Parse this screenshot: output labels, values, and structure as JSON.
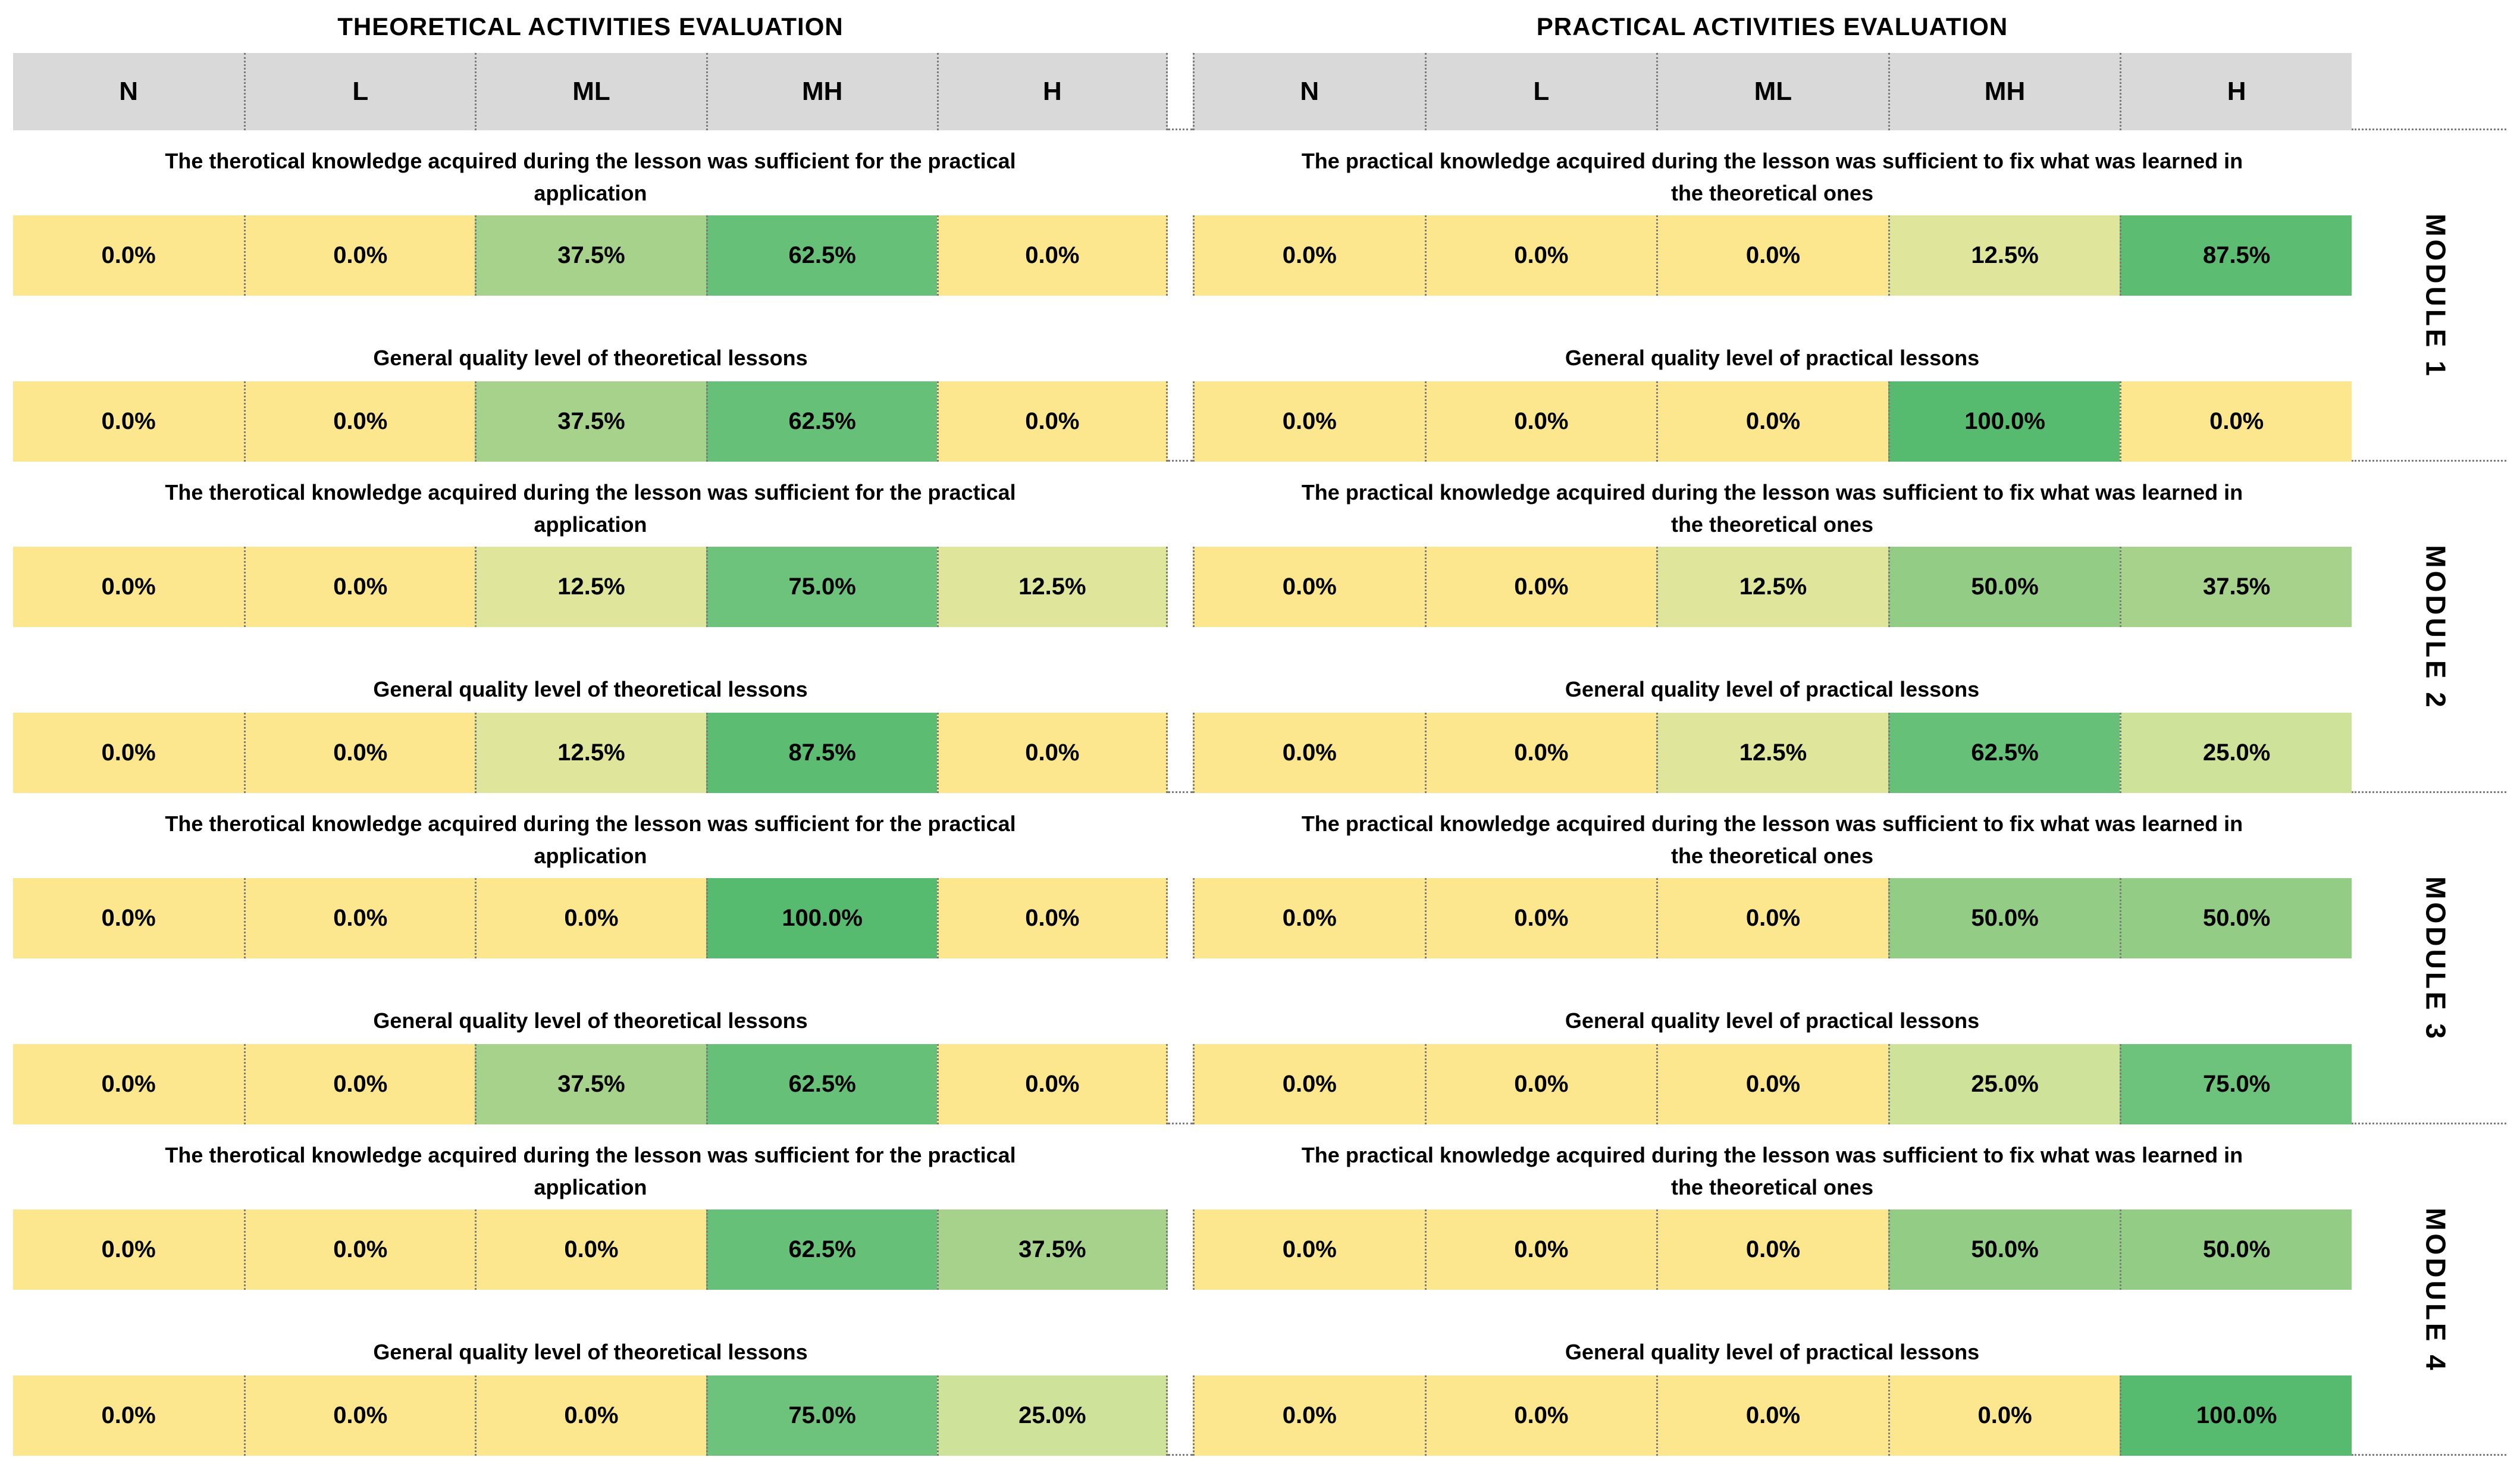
{
  "left_table": {
    "title": "THEORETICAL ACTIVITIES EVALUATION",
    "columns": [
      "N",
      "L",
      "ML",
      "MH",
      "H"
    ],
    "modules": [
      {
        "rows": [
          {
            "question": "The therotical knowledge acquired during the lesson was sufficient for the practical application",
            "values": [
              "0.0%",
              "0.0%",
              "37.5%",
              "62.5%",
              "0.0%"
            ]
          },
          {
            "question": "General quality level of theoretical lessons",
            "values": [
              "0.0%",
              "0.0%",
              "37.5%",
              "62.5%",
              "0.0%"
            ]
          }
        ]
      },
      {
        "rows": [
          {
            "question": "The therotical knowledge acquired during the lesson was sufficient for the practical application",
            "values": [
              "0.0%",
              "0.0%",
              "12.5%",
              "75.0%",
              "12.5%"
            ]
          },
          {
            "question": "General quality level of theoretical lessons",
            "values": [
              "0.0%",
              "0.0%",
              "12.5%",
              "87.5%",
              "0.0%"
            ]
          }
        ]
      },
      {
        "rows": [
          {
            "question": "The therotical knowledge acquired during the lesson was sufficient for the practical application",
            "values": [
              "0.0%",
              "0.0%",
              "0.0%",
              "100.0%",
              "0.0%"
            ]
          },
          {
            "question": "General quality level of theoretical lessons",
            "values": [
              "0.0%",
              "0.0%",
              "37.5%",
              "62.5%",
              "0.0%"
            ]
          }
        ]
      },
      {
        "rows": [
          {
            "question": "The therotical knowledge acquired during the lesson was sufficient for the practical application",
            "values": [
              "0.0%",
              "0.0%",
              "0.0%",
              "62.5%",
              "37.5%"
            ]
          },
          {
            "question": "General quality level of theoretical lessons",
            "values": [
              "0.0%",
              "0.0%",
              "0.0%",
              "75.0%",
              "25.0%"
            ]
          }
        ]
      }
    ]
  },
  "right_table": {
    "title": "PRACTICAL ACTIVITIES EVALUATION",
    "columns": [
      "N",
      "L",
      "ML",
      "MH",
      "H"
    ],
    "modules": [
      {
        "rows": [
          {
            "question": "The practical knowledge acquired during the lesson was sufficient to fix what was learned in the theoretical ones",
            "values": [
              "0.0%",
              "0.0%",
              "0.0%",
              "12.5%",
              "87.5%"
            ]
          },
          {
            "question": "General quality level of practical lessons",
            "values": [
              "0.0%",
              "0.0%",
              "0.0%",
              "100.0%",
              "0.0%"
            ]
          }
        ]
      },
      {
        "rows": [
          {
            "question": "The practical knowledge acquired during the lesson was sufficient to fix what was learned in the theoretical ones",
            "values": [
              "0.0%",
              "0.0%",
              "12.5%",
              "50.0%",
              "37.5%"
            ]
          },
          {
            "question": "General quality level of practical lessons",
            "values": [
              "0.0%",
              "0.0%",
              "12.5%",
              "62.5%",
              "25.0%"
            ]
          }
        ]
      },
      {
        "rows": [
          {
            "question": "The practical knowledge acquired during the lesson was sufficient to fix what was learned in the theoretical ones",
            "values": [
              "0.0%",
              "0.0%",
              "0.0%",
              "50.0%",
              "50.0%"
            ]
          },
          {
            "question": "General quality level of practical lessons",
            "values": [
              "0.0%",
              "0.0%",
              "0.0%",
              "25.0%",
              "75.0%"
            ]
          }
        ]
      },
      {
        "rows": [
          {
            "question": "The practical knowledge acquired during the lesson was sufficient to fix what was learned in the theoretical ones",
            "values": [
              "0.0%",
              "0.0%",
              "0.0%",
              "50.0%",
              "50.0%"
            ]
          },
          {
            "question": "General quality level of practical lessons",
            "values": [
              "0.0%",
              "0.0%",
              "0.0%",
              "0.0%",
              "100.0%"
            ]
          }
        ]
      }
    ]
  },
  "module_labels": [
    "MODULE 1",
    "MODULE 2",
    "MODULE 3",
    "MODULE 4"
  ],
  "colors": {
    "header_bg": "#D9D9D9",
    "grid_line": "#7B7B7B"
  },
  "heatmap_colors": {
    "0.0%": "#FCE78F",
    "12.5%": "#DFE69C",
    "25.0%": "#CFE29A",
    "37.5%": "#A7D28B",
    "50.0%": "#92CC85",
    "62.5%": "#67C078",
    "75.0%": "#6EC37C",
    "87.5%": "#5CBC72",
    "100.0%": "#57BB6F"
  },
  "chart_data": [
    {
      "type": "heatmap",
      "title": "THEORETICAL ACTIVITIES EVALUATION",
      "columns": [
        "N",
        "L",
        "ML",
        "MH",
        "H"
      ],
      "unit": "%",
      "color_scale": "yellow (0%) to green (100%)",
      "rows": [
        {
          "module": "MODULE 1",
          "question": "The therotical knowledge acquired during the lesson was sufficient for the practical application",
          "values": [
            0.0,
            0.0,
            37.5,
            62.5,
            0.0
          ]
        },
        {
          "module": "MODULE 1",
          "question": "General quality level of theoretical lessons",
          "values": [
            0.0,
            0.0,
            37.5,
            62.5,
            0.0
          ]
        },
        {
          "module": "MODULE 2",
          "question": "The therotical knowledge acquired during the lesson was sufficient for the practical application",
          "values": [
            0.0,
            0.0,
            12.5,
            75.0,
            12.5
          ]
        },
        {
          "module": "MODULE 2",
          "question": "General quality level of theoretical lessons",
          "values": [
            0.0,
            0.0,
            12.5,
            87.5,
            0.0
          ]
        },
        {
          "module": "MODULE 3",
          "question": "The therotical knowledge acquired during the lesson was sufficient for the practical application",
          "values": [
            0.0,
            0.0,
            0.0,
            100.0,
            0.0
          ]
        },
        {
          "module": "MODULE 3",
          "question": "General quality level of theoretical lessons",
          "values": [
            0.0,
            0.0,
            37.5,
            62.5,
            0.0
          ]
        },
        {
          "module": "MODULE 4",
          "question": "The therotical knowledge acquired during the lesson was sufficient for the practical application",
          "values": [
            0.0,
            0.0,
            0.0,
            62.5,
            37.5
          ]
        },
        {
          "module": "MODULE 4",
          "question": "General quality level of theoretical lessons",
          "values": [
            0.0,
            0.0,
            0.0,
            75.0,
            25.0
          ]
        }
      ]
    },
    {
      "type": "heatmap",
      "title": "PRACTICAL ACTIVITIES EVALUATION",
      "columns": [
        "N",
        "L",
        "ML",
        "MH",
        "H"
      ],
      "unit": "%",
      "color_scale": "yellow (0%) to green (100%)",
      "rows": [
        {
          "module": "MODULE 1",
          "question": "The practical knowledge acquired during the lesson was sufficient to fix what was learned in the theoretical ones",
          "values": [
            0.0,
            0.0,
            0.0,
            12.5,
            87.5
          ]
        },
        {
          "module": "MODULE 1",
          "question": "General quality level of practical lessons",
          "values": [
            0.0,
            0.0,
            0.0,
            100.0,
            0.0
          ]
        },
        {
          "module": "MODULE 2",
          "question": "The practical knowledge acquired during the lesson was sufficient to fix what was learned in the theoretical ones",
          "values": [
            0.0,
            0.0,
            12.5,
            50.0,
            37.5
          ]
        },
        {
          "module": "MODULE 2",
          "question": "General quality level of practical lessons",
          "values": [
            0.0,
            0.0,
            12.5,
            62.5,
            25.0
          ]
        },
        {
          "module": "MODULE 3",
          "question": "The practical knowledge acquired during the lesson was sufficient to fix what was learned in the theoretical ones",
          "values": [
            0.0,
            0.0,
            0.0,
            50.0,
            50.0
          ]
        },
        {
          "module": "MODULE 3",
          "question": "General quality level of practical lessons",
          "values": [
            0.0,
            0.0,
            0.0,
            25.0,
            75.0
          ]
        },
        {
          "module": "MODULE 4",
          "question": "The practical knowledge acquired during the lesson was sufficient to fix what was learned in the theoretical ones",
          "values": [
            0.0,
            0.0,
            0.0,
            50.0,
            50.0
          ]
        },
        {
          "module": "MODULE 4",
          "question": "General quality level of practical lessons",
          "values": [
            0.0,
            0.0,
            0.0,
            0.0,
            100.0
          ]
        }
      ]
    }
  ]
}
